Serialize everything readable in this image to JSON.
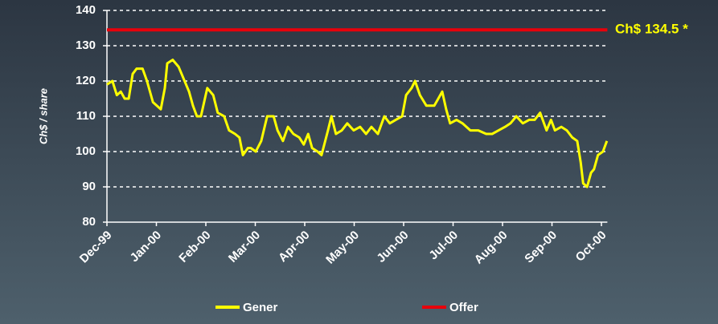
{
  "chart_data": {
    "type": "line",
    "y_label": "Ch$ / share",
    "annotation": "Ch$ 134.5 *",
    "xlim": [
      0,
      10.12
    ],
    "xticks": [
      {
        "value": 0,
        "label": "Dec-99"
      },
      {
        "value": 1,
        "label": "Jan-00"
      },
      {
        "value": 2,
        "label": "Feb-00"
      },
      {
        "value": 3,
        "label": "Mar-00"
      },
      {
        "value": 4,
        "label": "Apr-00"
      },
      {
        "value": 5,
        "label": "May-00"
      },
      {
        "value": 6,
        "label": "Jun-00"
      },
      {
        "value": 7,
        "label": "Jul-00"
      },
      {
        "value": 8,
        "label": "Aug-00"
      },
      {
        "value": 9,
        "label": "Sep-00"
      },
      {
        "value": 10,
        "label": "Oct-00"
      }
    ],
    "ylim": [
      80,
      140
    ],
    "yticks": [
      80,
      90,
      100,
      110,
      120,
      130,
      140
    ],
    "grid": true,
    "legend": "bottom",
    "series": [
      {
        "name": "Gener",
        "color": "#ffff00",
        "x": [
          0,
          0.11,
          0.2,
          0.28,
          0.36,
          0.44,
          0.52,
          0.6,
          0.72,
          0.81,
          0.93,
          1.09,
          1.17,
          1.22,
          1.33,
          1.45,
          1.54,
          1.66,
          1.74,
          1.82,
          1.9,
          2.03,
          2.15,
          2.24,
          2.37,
          2.47,
          2.59,
          2.68,
          2.75,
          2.85,
          2.91,
          3.01,
          3.12,
          3.24,
          3.37,
          3.45,
          3.56,
          3.66,
          3.77,
          3.89,
          3.98,
          4.07,
          4.15,
          4.26,
          4.34,
          4.47,
          4.54,
          4.63,
          4.75,
          4.86,
          4.99,
          5.12,
          5.24,
          5.35,
          5.48,
          5.61,
          5.72,
          5.84,
          5.97,
          6.05,
          6.16,
          6.23,
          6.33,
          6.46,
          6.62,
          6.7,
          6.78,
          6.86,
          6.94,
          7.07,
          7.19,
          7.35,
          7.51,
          7.67,
          7.79,
          7.92,
          8.05,
          8.16,
          8.28,
          8.41,
          8.54,
          8.65,
          8.76,
          8.89,
          8.98,
          9.06,
          9.19,
          9.3,
          9.41,
          9.51,
          9.58,
          9.63,
          9.71,
          9.79,
          9.85,
          9.93,
          10.03,
          10.11
        ],
        "values": [
          119,
          120,
          116,
          117,
          115,
          115,
          122,
          123.5,
          123.5,
          120,
          114,
          112,
          118,
          125,
          126,
          124,
          121,
          117,
          113,
          110,
          110,
          118,
          116,
          111,
          110,
          106,
          105,
          104,
          99,
          101,
          101,
          100,
          103,
          110,
          110,
          106,
          103,
          107,
          105,
          104,
          102,
          105,
          101,
          100,
          99,
          106,
          110,
          105,
          106,
          108,
          106,
          107,
          105,
          107,
          105,
          110,
          108,
          109,
          110,
          116,
          118,
          120,
          116,
          113,
          113,
          115,
          117,
          112,
          108,
          109,
          108,
          106,
          106,
          105,
          105,
          106,
          107,
          108,
          110,
          108,
          109,
          109,
          111,
          106,
          109,
          106,
          107,
          106,
          104,
          103,
          97,
          91,
          90,
          94,
          95,
          99,
          100,
          103
        ]
      },
      {
        "name": "Offer",
        "color": "#e8000b",
        "x": [
          0,
          10.12
        ],
        "values": [
          134.5,
          134.5
        ]
      }
    ]
  }
}
